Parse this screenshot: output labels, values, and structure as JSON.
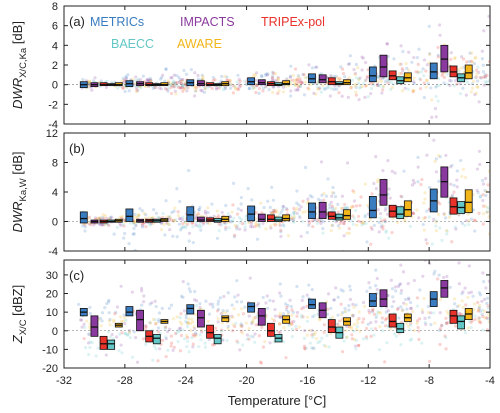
{
  "colors": {
    "METRICs": "#3a7cc0",
    "IMPACTS": "#8a3a9e",
    "TRIPEx-pol": "#e8322a",
    "BAECC": "#63c7c7",
    "AWARE": "#f2b51a"
  },
  "chart_data": {
    "type": "box",
    "xlabel": "Temperature [°C]",
    "xlim": [
      -32,
      -4
    ],
    "x_ticks": [
      "-32",
      "-28",
      "-24",
      "-20",
      "-16",
      "-12",
      "-8",
      "-4"
    ],
    "legend": {
      "placement": "top-left of panel (a)",
      "entries": [
        "METRICs",
        "IMPACTS",
        "TRIPEx-pol",
        "BAECC",
        "AWARE"
      ]
    },
    "temperature_bins": [
      -30,
      -27,
      -23,
      -19,
      -15,
      -11,
      -7
    ],
    "campaign_offsets": {
      "METRICs": -0.7,
      "IMPACTS": 0.0,
      "TRIPEx-pol": 0.6,
      "BAECC": 1.1,
      "AWARE": 1.6
    },
    "panels": [
      {
        "label": "(a)",
        "ylabel_main": "DWR",
        "ylabel_sub": "X/C,Ka",
        "ylabel_unit": " [dB]",
        "ylim": [
          -4,
          8
        ],
        "y_ticks": [
          "-4",
          "-2",
          "0",
          "2",
          "4",
          "6",
          "8"
        ],
        "series": [
          {
            "name": "METRICs",
            "boxes": [
              [
                -0.3,
                0.0,
                0.3
              ],
              [
                -0.2,
                0.1,
                0.4
              ],
              [
                -0.1,
                0.2,
                0.5
              ],
              [
                0.0,
                0.3,
                0.7
              ],
              [
                0.2,
                0.6,
                1.1
              ],
              [
                0.3,
                0.9,
                1.8
              ],
              [
                0.6,
                1.3,
                2.2
              ]
            ]
          },
          {
            "name": "IMPACTS",
            "boxes": [
              [
                -0.2,
                0.0,
                0.2
              ],
              [
                -0.1,
                0.1,
                0.3
              ],
              [
                -0.1,
                0.1,
                0.4
              ],
              [
                0.0,
                0.2,
                0.5
              ],
              [
                0.2,
                0.5,
                1.0
              ],
              [
                0.8,
                1.8,
                3.0
              ],
              [
                1.3,
                2.6,
                4.0
              ]
            ]
          },
          {
            "name": "TRIPEx-pol",
            "boxes": [
              [
                -0.1,
                0.0,
                0.2
              ],
              [
                -0.1,
                0.0,
                0.2
              ],
              [
                -0.1,
                0.0,
                0.2
              ],
              [
                -0.1,
                0.1,
                0.3
              ],
              [
                0.0,
                0.3,
                0.7
              ],
              [
                0.5,
                0.9,
                1.4
              ],
              [
                0.8,
                1.3,
                1.9
              ]
            ]
          },
          {
            "name": "BAECC",
            "boxes": [
              [
                -0.1,
                0.0,
                0.1
              ],
              [
                -0.1,
                0.0,
                0.1
              ],
              [
                -0.1,
                0.0,
                0.1
              ],
              [
                -0.1,
                0.0,
                0.2
              ],
              [
                0.0,
                0.1,
                0.3
              ],
              [
                0.1,
                0.4,
                0.8
              ],
              [
                0.3,
                0.7,
                1.1
              ]
            ]
          },
          {
            "name": "AWARE",
            "boxes": [
              [
                -0.1,
                0.0,
                0.2
              ],
              [
                -0.1,
                0.0,
                0.2
              ],
              [
                -0.1,
                0.1,
                0.3
              ],
              [
                0.0,
                0.1,
                0.4
              ],
              [
                0.0,
                0.2,
                0.5
              ],
              [
                0.3,
                0.7,
                1.2
              ],
              [
                0.6,
                1.2,
                2.0
              ]
            ]
          }
        ]
      },
      {
        "label": "(b)",
        "ylabel_main": "DWR",
        "ylabel_sub": "Ka,W",
        "ylabel_unit": " [dB]",
        "ylim": [
          -4,
          12
        ],
        "y_ticks": [
          "-4",
          "0",
          "4",
          "8",
          "12"
        ],
        "series": [
          {
            "name": "METRICs",
            "boxes": [
              [
                -0.2,
                0.4,
                1.3
              ],
              [
                0.0,
                0.7,
                1.7
              ],
              [
                0.0,
                0.9,
                2.0
              ],
              [
                0.1,
                1.0,
                2.1
              ],
              [
                0.4,
                1.3,
                2.5
              ],
              [
                0.5,
                1.5,
                3.4
              ],
              [
                1.3,
                2.8,
                4.4
              ]
            ]
          },
          {
            "name": "IMPACTS",
            "boxes": [
              [
                -0.2,
                0.0,
                0.2
              ],
              [
                -0.1,
                0.1,
                0.3
              ],
              [
                0.0,
                0.2,
                0.6
              ],
              [
                0.0,
                0.3,
                1.0
              ],
              [
                0.4,
                1.3,
                2.6
              ],
              [
                2.2,
                3.6,
                5.7
              ],
              [
                3.3,
                5.4,
                7.4
              ]
            ]
          },
          {
            "name": "TRIPEx-pol",
            "boxes": [
              [
                -0.2,
                0.0,
                0.2
              ],
              [
                -0.1,
                0.1,
                0.3
              ],
              [
                0.0,
                0.2,
                0.5
              ],
              [
                0.0,
                0.3,
                0.9
              ],
              [
                0.3,
                0.7,
                1.3
              ],
              [
                0.6,
                1.4,
                2.2
              ],
              [
                1.0,
                2.0,
                3.2
              ]
            ]
          },
          {
            "name": "BAECC",
            "boxes": [
              [
                -0.1,
                0.0,
                0.2
              ],
              [
                -0.1,
                0.1,
                0.3
              ],
              [
                -0.1,
                0.1,
                0.4
              ],
              [
                0.0,
                0.2,
                0.6
              ],
              [
                0.2,
                0.5,
                1.0
              ],
              [
                0.4,
                1.0,
                2.0
              ],
              [
                1.1,
                1.9,
                2.7
              ]
            ]
          },
          {
            "name": "AWARE",
            "boxes": [
              [
                -0.1,
                0.1,
                0.3
              ],
              [
                0.0,
                0.2,
                0.4
              ],
              [
                0.0,
                0.3,
                0.7
              ],
              [
                0.1,
                0.4,
                0.9
              ],
              [
                0.3,
                0.8,
                1.6
              ],
              [
                0.7,
                1.6,
                2.8
              ],
              [
                1.2,
                2.6,
                4.3
              ]
            ]
          }
        ]
      },
      {
        "label": "(c)",
        "ylabel_main": "Z",
        "ylabel_sub": "X/C",
        "ylabel_unit": " [dBZ]",
        "ylim": [
          -20,
          38
        ],
        "y_ticks": [
          "-20",
          "-10",
          "0",
          "10",
          "20",
          "30"
        ],
        "series": [
          {
            "name": "METRICs",
            "boxes": [
              [
                8,
                10,
                12
              ],
              [
                8,
                10,
                13
              ],
              [
                9,
                12,
                14
              ],
              [
                10,
                13,
                15
              ],
              [
                12,
                14,
                17
              ],
              [
                13,
                16,
                20
              ],
              [
                13,
                17,
                21
              ]
            ]
          },
          {
            "name": "IMPACTS",
            "boxes": [
              [
                -3,
                2,
                8
              ],
              [
                0,
                6,
                11
              ],
              [
                2,
                7,
                11
              ],
              [
                3,
                8,
                12
              ],
              [
                7,
                11,
                15
              ],
              [
                13,
                17,
                22
              ],
              [
                18,
                23,
                27
              ]
            ]
          },
          {
            "name": "TRIPEx-pol",
            "boxes": [
              [
                -10,
                -7,
                -3
              ],
              [
                -6,
                -3,
                0
              ],
              [
                -4,
                -1,
                3
              ],
              [
                -3,
                0,
                4
              ],
              [
                -1,
                2,
                6
              ],
              [
                2,
                5,
                9
              ],
              [
                4,
                8,
                11
              ]
            ]
          },
          {
            "name": "BAECC",
            "boxes": [
              [
                -10,
                -7,
                -5
              ],
              [
                -7,
                -4,
                -2
              ],
              [
                -7,
                -4,
                -2
              ],
              [
                -6,
                -4,
                -2
              ],
              [
                -4,
                -1,
                2
              ],
              [
                -1,
                1,
                4
              ],
              [
                1,
                5,
                8
              ]
            ]
          },
          {
            "name": "AWARE",
            "boxes": [
              [
                2,
                3,
                4
              ],
              [
                4,
                5,
                6
              ],
              [
                5,
                7,
                8
              ],
              [
                4,
                6,
                8
              ],
              [
                3,
                5,
                7
              ],
              [
                5,
                7,
                9
              ],
              [
                6,
                9,
                12
              ]
            ]
          }
        ]
      }
    ]
  }
}
